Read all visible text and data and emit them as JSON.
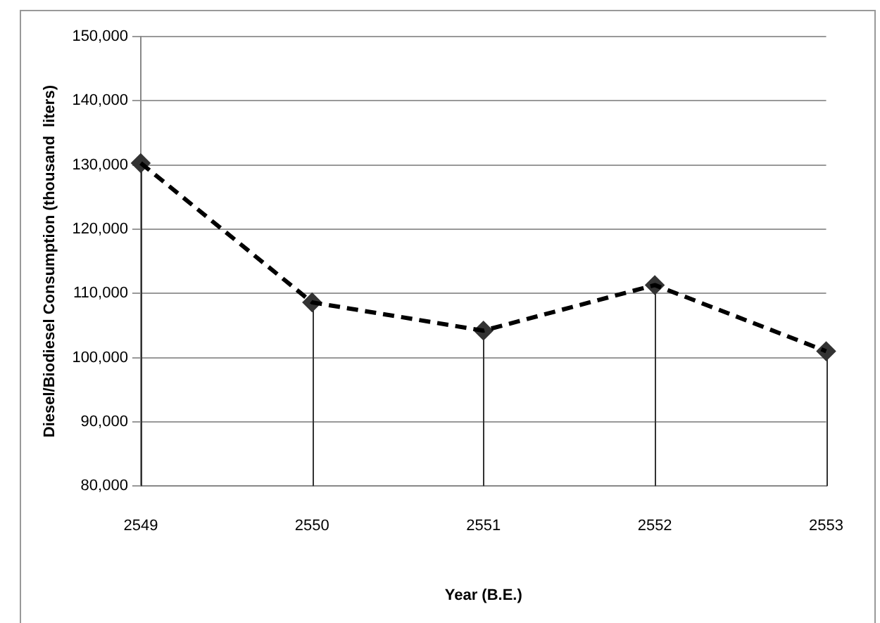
{
  "chart_data": {
    "type": "line",
    "xlabel": "Year (B.E.)",
    "ylabel": "Diesel/Biodiesel Consumption (thousand  liters)",
    "categories": [
      "2549",
      "2550",
      "2551",
      "2552",
      "2553"
    ],
    "series": [
      {
        "color": "#000000",
        "marker": "none",
        "values": [
          130300,
          108600,
          104200,
          111300,
          101000
        ]
      },
      {
        "type": "lollipop",
        "color": "#333333",
        "values": [
          130300,
          108600,
          104200,
          111300,
          101000
        ]
      }
    ],
    "ylim": [
      80000,
      150000
    ],
    "yticks": [
      {
        "value": 80000,
        "label": "80,000"
      },
      {
        "value": 90000,
        "label": "90,000"
      },
      {
        "value": 100000,
        "label": "100,000"
      },
      {
        "value": 110000,
        "label": "110,000"
      },
      {
        "value": 120000,
        "label": "120,000"
      },
      {
        "value": 130000,
        "label": "130,000"
      },
      {
        "value": 140000,
        "label": "140,000"
      },
      {
        "value": 150000,
        "label": "150,000"
      }
    ],
    "grid": "y",
    "legend": false,
    "marker": "diamond",
    "line_style": "dashed"
  }
}
